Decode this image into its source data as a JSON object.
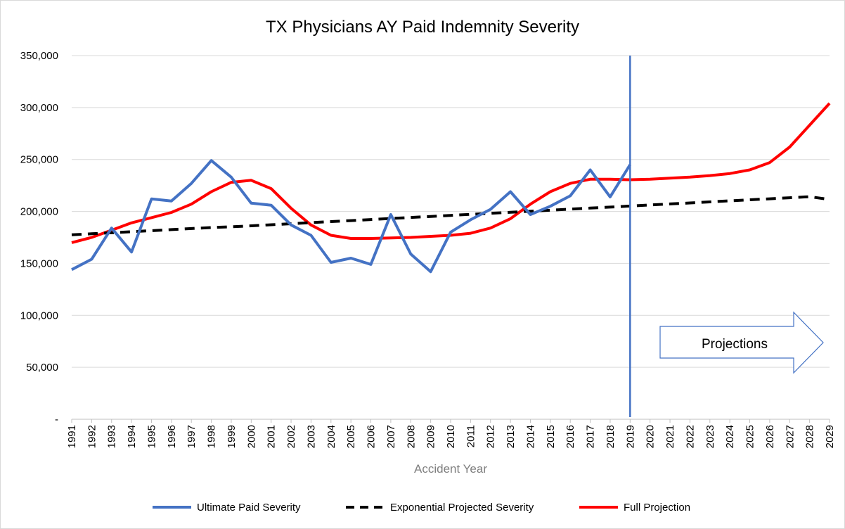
{
  "chart_data": {
    "type": "line",
    "title": "TX Physicians AY Paid Indemnity Severity",
    "xlabel": "Accident Year",
    "ylabel": "",
    "ylim": [
      0,
      350000
    ],
    "yticks": [
      0,
      50000,
      100000,
      150000,
      200000,
      250000,
      300000,
      350000
    ],
    "ytick_labels": [
      "-",
      "50,000",
      "100,000",
      "150,000",
      "200,000",
      "250,000",
      "300,000",
      "350,000"
    ],
    "grid": true,
    "legend_position": "bottom",
    "categories": [
      "1991",
      "1992",
      "1993",
      "1994",
      "1995",
      "1996",
      "1997",
      "1998",
      "1999",
      "2000",
      "2001",
      "2002",
      "2003",
      "2004",
      "2005",
      "2006",
      "2007",
      "2008",
      "2009",
      "2010",
      "2011",
      "2012",
      "2013",
      "2014",
      "2015",
      "2016",
      "2017",
      "2018",
      "2019",
      "2020",
      "2021",
      "2022",
      "2023",
      "2024",
      "2025",
      "2026",
      "2027",
      "2028",
      "2029"
    ],
    "series": [
      {
        "name": "Ultimate Paid Severity",
        "color": "#4472c4",
        "style": "solid",
        "values": [
          144000,
          154000,
          184000,
          161000,
          212000,
          210000,
          227000,
          249000,
          233000,
          208000,
          206000,
          187000,
          177000,
          151000,
          155000,
          149000,
          197000,
          159000,
          142000,
          180000,
          192000,
          202000,
          219000,
          197000,
          205000,
          215000,
          240000,
          214000,
          245000,
          null,
          null,
          null,
          null,
          null,
          null,
          null,
          null,
          null,
          null
        ]
      },
      {
        "name": "Exponential Projected Severity",
        "color": "#000000",
        "style": "dashed",
        "values": [
          177500,
          178500,
          179500,
          180500,
          181500,
          182500,
          183500,
          184500,
          185200,
          186200,
          187200,
          188200,
          189200,
          190200,
          191200,
          192200,
          193200,
          194200,
          195200,
          196200,
          197200,
          198200,
          199200,
          200200,
          201200,
          202200,
          203200,
          204200,
          205200,
          206200,
          207200,
          208200,
          209200,
          210200,
          211200,
          212200,
          213200,
          214200,
          211500
        ]
      },
      {
        "name": "Full Projection",
        "color": "#ff0000",
        "style": "solid",
        "values": [
          170000,
          175000,
          182000,
          189000,
          194000,
          199000,
          207000,
          219000,
          228000,
          230000,
          222000,
          203000,
          187000,
          177000,
          174000,
          174000,
          174500,
          175000,
          176000,
          177000,
          179000,
          184000,
          193000,
          207000,
          219000,
          227000,
          231000,
          231000,
          230500,
          231000,
          232000,
          233000,
          234500,
          236500,
          240000,
          247000,
          262000,
          283000,
          304000
        ]
      }
    ],
    "annotations": {
      "projections_label": "Projections",
      "divider_year": "2019"
    }
  }
}
